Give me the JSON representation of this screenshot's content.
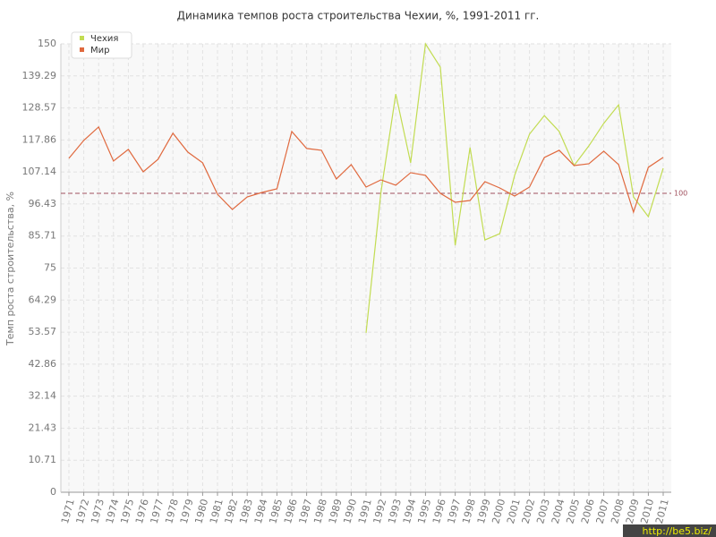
{
  "chart_data": {
    "type": "line",
    "title": "Динамика темпов роста строительства Чехии, %, 1991-2011 гг.",
    "y_label": "Темп роста строительства, %",
    "categories": [
      "1971",
      "1972",
      "1973",
      "1974",
      "1975",
      "1976",
      "1977",
      "1978",
      "1979",
      "1980",
      "1981",
      "1982",
      "1983",
      "1984",
      "1985",
      "1986",
      "1987",
      "1988",
      "1989",
      "1990",
      "1991",
      "1992",
      "1993",
      "1994",
      "1995",
      "1996",
      "1997",
      "1998",
      "1999",
      "2000",
      "2001",
      "2002",
      "2003",
      "2004",
      "2005",
      "2006",
      "2007",
      "2008",
      "2009",
      "2010",
      "2011"
    ],
    "series": [
      {
        "name": "Чехия",
        "color": "#c2dc52",
        "values": [
          null,
          null,
          null,
          null,
          null,
          null,
          null,
          null,
          null,
          null,
          null,
          null,
          null,
          null,
          null,
          null,
          null,
          null,
          null,
          null,
          53.3,
          100.3,
          133.2,
          110.2,
          150,
          142.2,
          82.6,
          115.3,
          84.4,
          86.5,
          106,
          119.8,
          126,
          120.7,
          109.3,
          115.9,
          123.4,
          129.6,
          98.8,
          92.2,
          108.4
        ]
      },
      {
        "name": "Мир",
        "color": "#e0693e",
        "values": [
          111.7,
          117.7,
          122.2,
          110.8,
          114.7,
          107.2,
          111.4,
          120.1,
          113.8,
          110.2,
          99.7,
          94.6,
          98.8,
          100.3,
          101.5,
          120.7,
          115,
          114.4,
          104.8,
          109.6,
          102.1,
          104.5,
          102.7,
          106.9,
          106,
          100,
          97,
          97.6,
          103.9,
          101.8,
          99.1,
          102.1,
          112,
          114.4,
          109.3,
          109.9,
          114.1,
          109.6,
          93.7,
          108.7,
          112
        ]
      }
    ],
    "ylim": [
      0,
      150
    ],
    "yticks": [
      0,
      10.71,
      21.43,
      32.14,
      42.86,
      53.57,
      64.29,
      75,
      85.71,
      96.43,
      107.14,
      117.86,
      128.57,
      139.29,
      150
    ],
    "grid": true,
    "reference_line": 100,
    "watermark": "http://be5.biz/"
  }
}
